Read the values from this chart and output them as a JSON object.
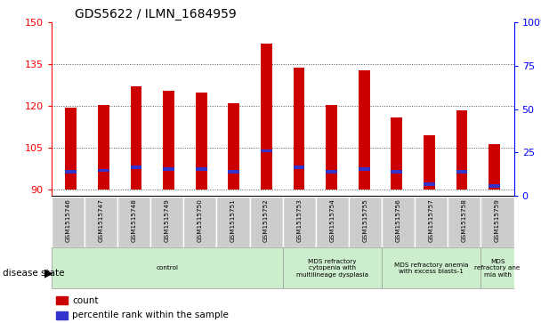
{
  "title": "GDS5622 / ILMN_1684959",
  "samples": [
    "GSM1515746",
    "GSM1515747",
    "GSM1515748",
    "GSM1515749",
    "GSM1515750",
    "GSM1515751",
    "GSM1515752",
    "GSM1515753",
    "GSM1515754",
    "GSM1515755",
    "GSM1515756",
    "GSM1515757",
    "GSM1515758",
    "GSM1515759"
  ],
  "count_values": [
    119.5,
    120.5,
    127.0,
    125.5,
    125.0,
    121.0,
    142.5,
    134.0,
    120.5,
    133.0,
    116.0,
    109.5,
    118.5,
    106.5
  ],
  "percentile_left_values": [
    96.5,
    97.0,
    98.0,
    97.5,
    97.5,
    96.5,
    104.0,
    98.0,
    96.5,
    97.5,
    96.5,
    92.0,
    96.5,
    91.5
  ],
  "ylim_left": [
    88,
    150
  ],
  "ylim_right": [
    0,
    100
  ],
  "yticks_left": [
    90,
    105,
    120,
    135,
    150
  ],
  "yticks_right": [
    0,
    25,
    50,
    75,
    100
  ],
  "bar_color": "#cc0000",
  "pct_color": "#3333cc",
  "bar_width": 0.35,
  "grid_color": "#555555",
  "bg_plot": "#ffffff",
  "bg_label": "#cccccc",
  "bg_disease_all": "#cceecc",
  "disease_groups": [
    {
      "label": "control",
      "start": 0,
      "end": 7
    },
    {
      "label": "MDS refractory\ncytopenia with\nmultilineage dysplasia",
      "start": 7,
      "end": 10
    },
    {
      "label": "MDS refractory anemia\nwith excess blasts-1",
      "start": 10,
      "end": 13
    },
    {
      "label": "MDS\nrefractory ane\nmia with",
      "start": 13,
      "end": 14
    }
  ],
  "legend_count_label": "count",
  "legend_pct_label": "percentile rank within the sample",
  "disease_state_label": "disease state"
}
